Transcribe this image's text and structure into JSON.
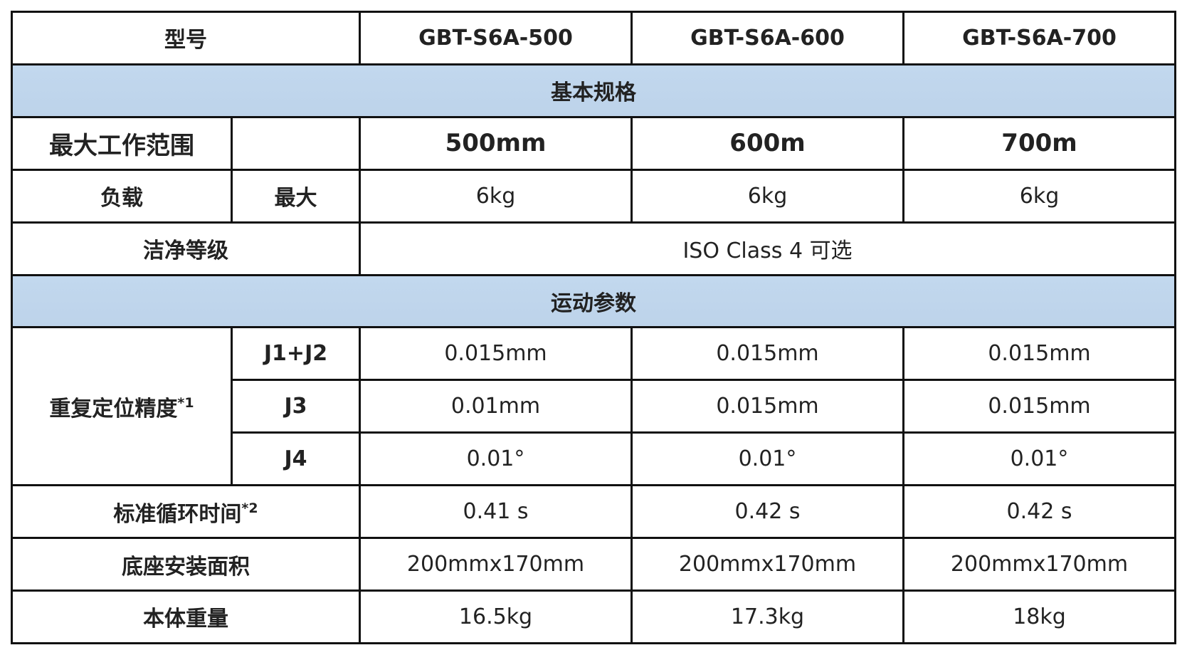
{
  "header": {
    "label": "型号",
    "models": [
      "GBT-S6A-500",
      "GBT-S6A-600",
      "GBT-S6A-700"
    ]
  },
  "section_basic": "基本规格",
  "work_range": {
    "label": "最大工作范围",
    "values": [
      "500mm",
      "600m",
      "700m"
    ]
  },
  "payload": {
    "label": "负载",
    "sub": "最大",
    "values": [
      "6kg",
      "6kg",
      "6kg"
    ]
  },
  "cleanliness": {
    "label": "洁净等级",
    "value": "ISO Class 4 可选"
  },
  "section_motion": "运动参数",
  "repeatability": {
    "label": "重复定位精度",
    "note": "*1",
    "rows": [
      {
        "axis": "J1+J2",
        "values": [
          "0.015mm",
          "0.015mm",
          "0.015mm"
        ]
      },
      {
        "axis": "J3",
        "values": [
          "0.01mm",
          "0.015mm",
          "0.015mm"
        ]
      },
      {
        "axis": "J4",
        "values": [
          "0.01°",
          "0.01°",
          "0.01°"
        ]
      }
    ]
  },
  "cycle_time": {
    "label": "标准循环时间",
    "note": "*2",
    "values": [
      "0.41 s",
      "0.42 s",
      "0.42 s"
    ]
  },
  "mount_area": {
    "label": "底座安装面积",
    "values": [
      "200mmx170mm",
      "200mmx170mm",
      "200mmx170mm"
    ]
  },
  "weight": {
    "label": "本体重量",
    "values": [
      "16.5kg",
      "17.3kg",
      "18kg"
    ]
  },
  "colors": {
    "section_band": "#bfd5ec",
    "border": "#111111"
  }
}
